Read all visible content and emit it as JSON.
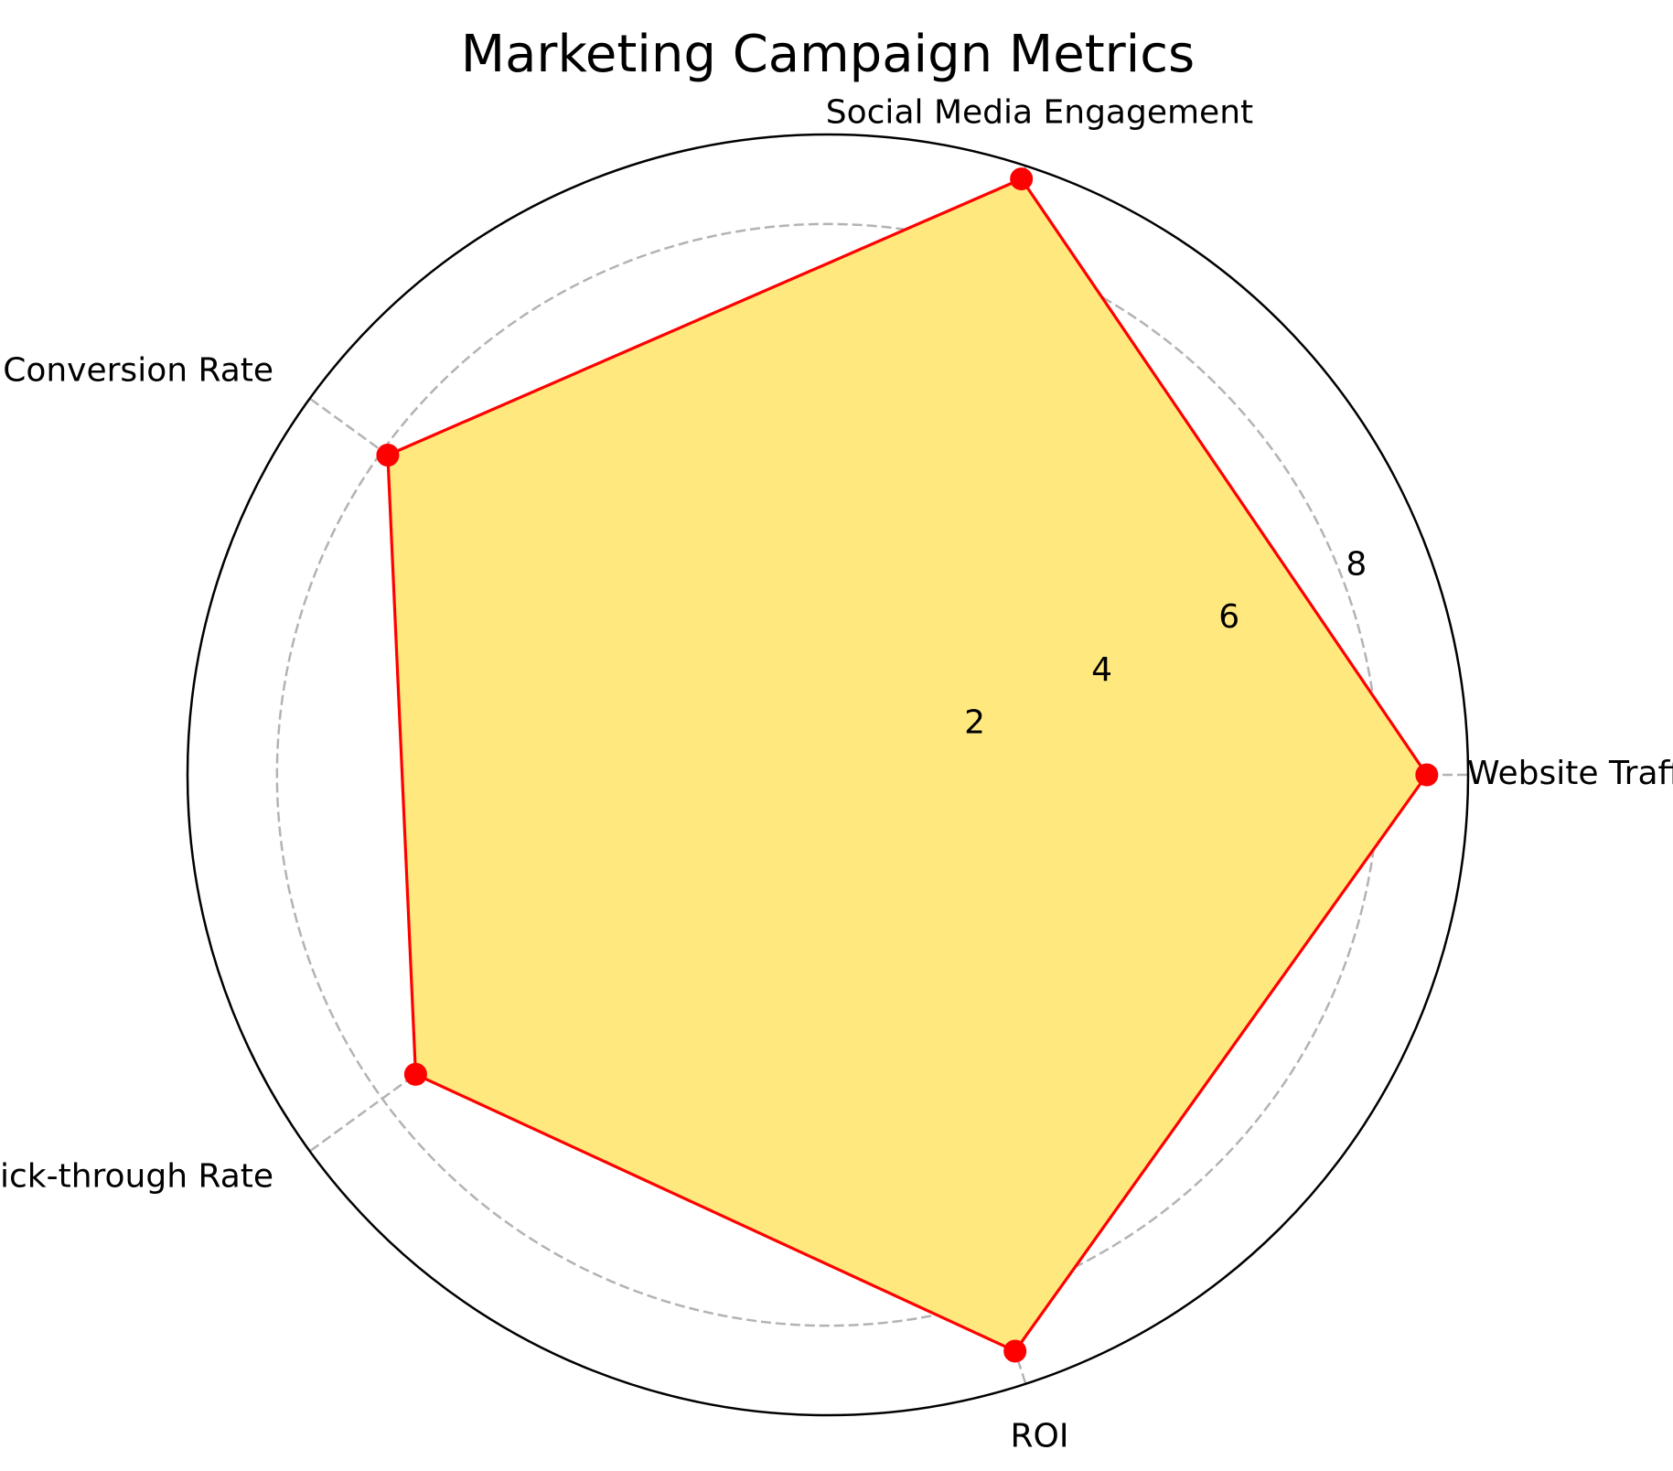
{
  "chart_data": {
    "type": "radar",
    "title": "Marketing Campaign Metrics",
    "categories": [
      "Website Traffic",
      "Social Media Engagement",
      "Conversion Rate",
      "Email Click-through Rate",
      "ROI"
    ],
    "series": [
      {
        "values": [
          8.7,
          9.1,
          7.9,
          7.4,
          8.8
        ]
      }
    ],
    "rlim": [
      0,
      9.3
    ],
    "rticks": [
      2,
      4,
      6,
      8
    ],
    "rtick_labels": [
      "2",
      "4",
      "6",
      "8"
    ],
    "grid": true,
    "colors": {
      "fill": "#FFE97F",
      "line": "#FF0000",
      "marker": "#FF0000",
      "grid": "#B3B3B3",
      "frame": "#000000"
    }
  }
}
